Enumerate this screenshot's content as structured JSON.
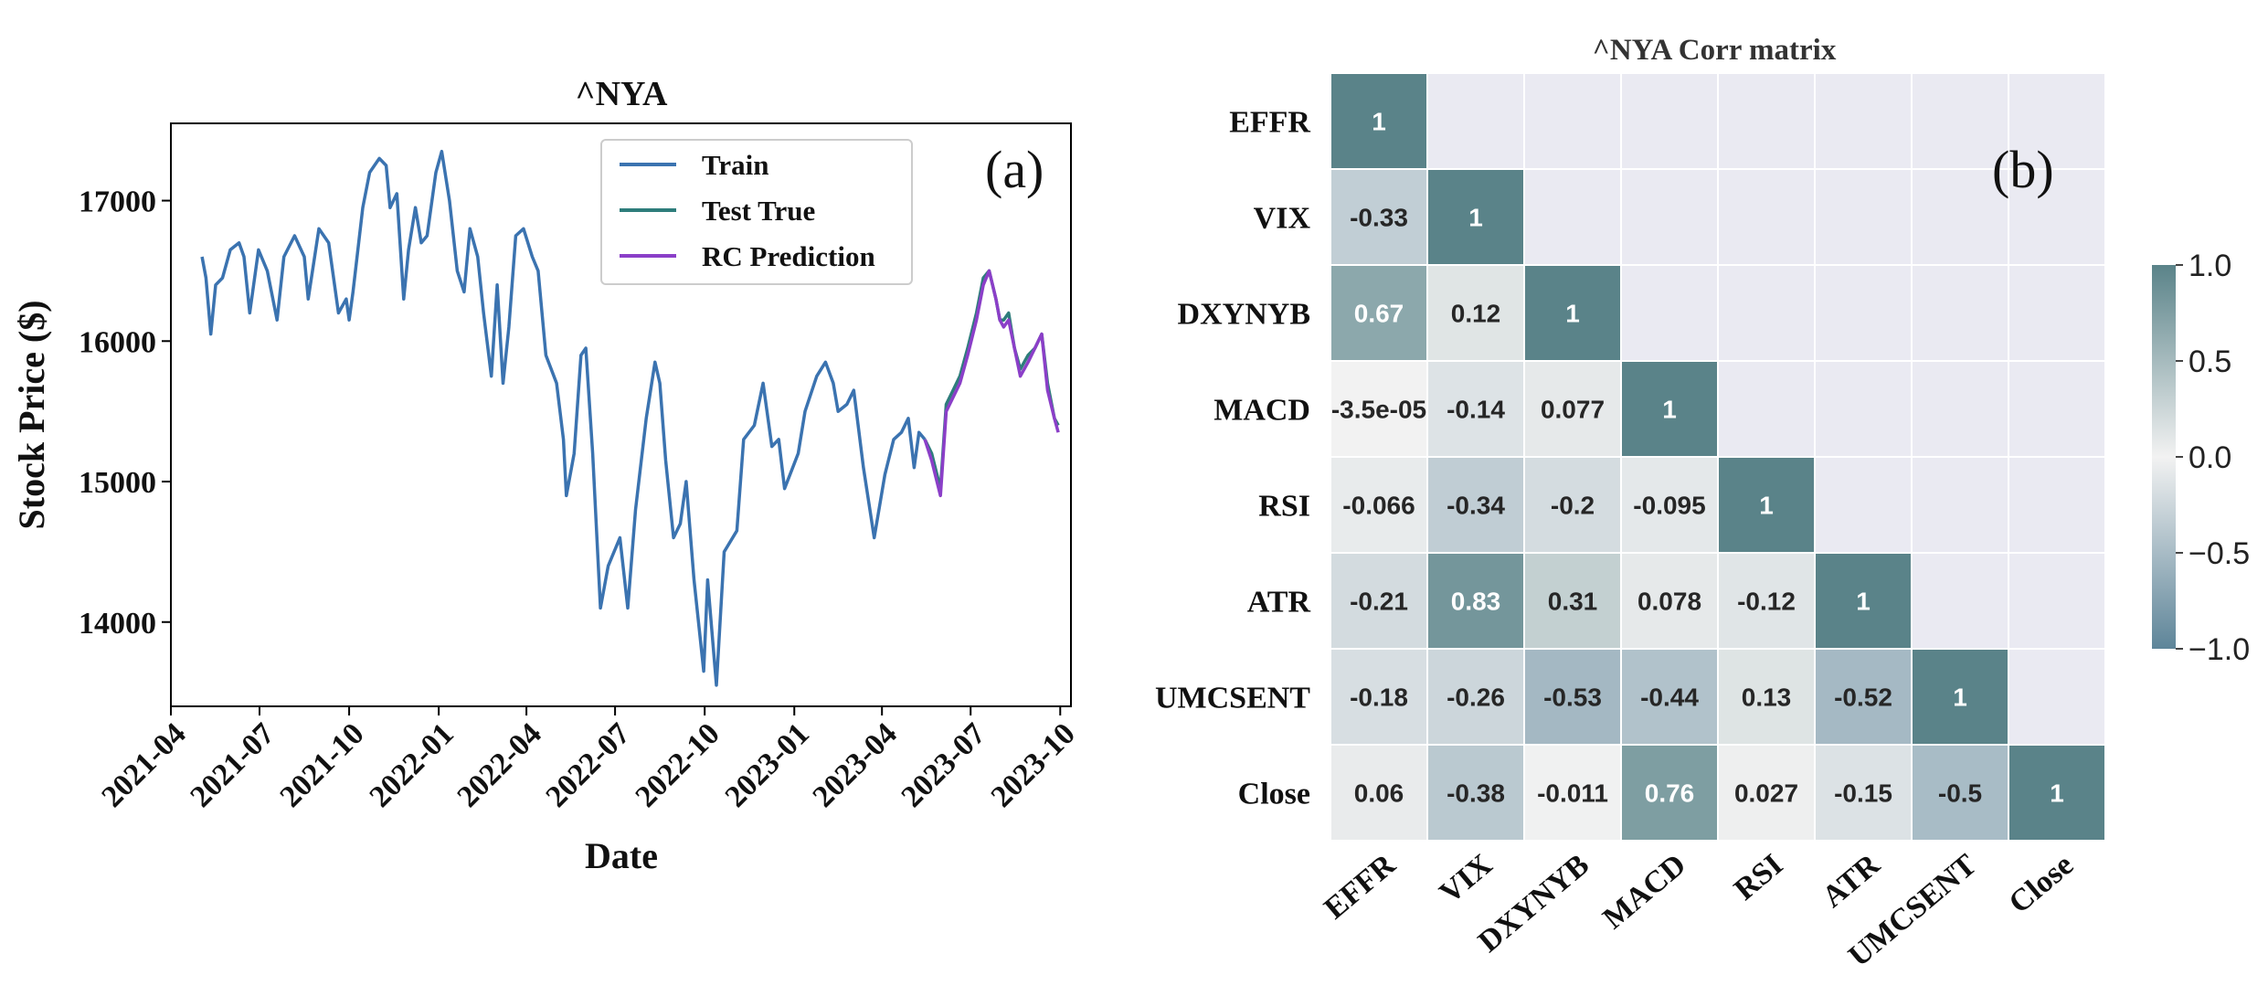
{
  "chart_data": [
    {
      "type": "line",
      "panel_label": "(a)",
      "title": "^NYA",
      "xlabel": "Date",
      "ylabel": "Stock Price ($)",
      "x_ticks": [
        "2021-04",
        "2021-07",
        "2021-10",
        "2022-01",
        "2022-04",
        "2022-07",
        "2022-10",
        "2023-01",
        "2023-04",
        "2023-07",
        "2023-10"
      ],
      "y_ticks": [
        14000,
        15000,
        16000,
        17000
      ],
      "xlim": [
        "2021-04-01",
        "2023-10-12"
      ],
      "ylim": [
        13400,
        17550
      ],
      "legend_position": "upper center",
      "series": [
        {
          "name": "Train",
          "color": "#3b73b0",
          "x": [
            "2021-05-03",
            "2021-05-07",
            "2021-05-12",
            "2021-05-17",
            "2021-05-24",
            "2021-06-01",
            "2021-06-10",
            "2021-06-15",
            "2021-06-21",
            "2021-06-30",
            "2021-07-09",
            "2021-07-19",
            "2021-07-26",
            "2021-08-06",
            "2021-08-16",
            "2021-08-20",
            "2021-08-31",
            "2021-09-10",
            "2021-09-20",
            "2021-09-28",
            "2021-10-01",
            "2021-10-05",
            "2021-10-15",
            "2021-10-22",
            "2021-11-01",
            "2021-11-08",
            "2021-11-12",
            "2021-11-19",
            "2021-11-26",
            "2021-12-01",
            "2021-12-08",
            "2021-12-14",
            "2021-12-20",
            "2021-12-29",
            "2022-01-04",
            "2022-01-12",
            "2022-01-20",
            "2022-01-27",
            "2022-02-02",
            "2022-02-10",
            "2022-02-16",
            "2022-02-24",
            "2022-03-02",
            "2022-03-08",
            "2022-03-14",
            "2022-03-21",
            "2022-03-29",
            "2022-04-07",
            "2022-04-13",
            "2022-04-21",
            "2022-05-02",
            "2022-05-09",
            "2022-05-12",
            "2022-05-20",
            "2022-05-27",
            "2022-06-01",
            "2022-06-08",
            "2022-06-16",
            "2022-06-24",
            "2022-07-06",
            "2022-07-14",
            "2022-07-22",
            "2022-08-02",
            "2022-08-11",
            "2022-08-16",
            "2022-08-22",
            "2022-08-30",
            "2022-09-06",
            "2022-09-12",
            "2022-09-20",
            "2022-09-30",
            "2022-10-04",
            "2022-10-13",
            "2022-10-21",
            "2022-11-03",
            "2022-11-10",
            "2022-11-21",
            "2022-11-30",
            "2022-12-09",
            "2022-12-16",
            "2022-12-22",
            "2023-01-05",
            "2023-01-12",
            "2023-01-24",
            "2023-02-02",
            "2023-02-10",
            "2023-02-15",
            "2023-02-24",
            "2023-03-03",
            "2023-03-13",
            "2023-03-24",
            "2023-04-04",
            "2023-04-13",
            "2023-04-21",
            "2023-04-28",
            "2023-05-04",
            "2023-05-09",
            "2023-05-15"
          ],
          "y": [
            16600,
            16450,
            16050,
            16400,
            16450,
            16650,
            16700,
            16600,
            16200,
            16650,
            16500,
            16150,
            16600,
            16750,
            16600,
            16300,
            16800,
            16700,
            16200,
            16300,
            16150,
            16350,
            16950,
            17200,
            17300,
            17250,
            16950,
            17050,
            16300,
            16650,
            16950,
            16700,
            16750,
            17200,
            17350,
            17000,
            16500,
            16350,
            16800,
            16600,
            16200,
            15750,
            16400,
            15700,
            16100,
            16750,
            16800,
            16600,
            16500,
            15900,
            15700,
            15300,
            14900,
            15200,
            15900,
            15950,
            15200,
            14100,
            14400,
            14600,
            14100,
            14800,
            15450,
            15850,
            15700,
            15150,
            14600,
            14700,
            15000,
            14300,
            13650,
            14300,
            13550,
            14500,
            14650,
            15300,
            15400,
            15700,
            15250,
            15300,
            14950,
            15200,
            15500,
            15750,
            15850,
            15700,
            15500,
            15550,
            15650,
            15100,
            14600,
            15050,
            15300,
            15350,
            15450,
            15100,
            15350,
            15300
          ]
        },
        {
          "name": "Test True",
          "color": "#2e7d7b",
          "x": [
            "2023-05-15",
            "2023-05-22",
            "2023-05-31",
            "2023-06-06",
            "2023-06-13",
            "2023-06-20",
            "2023-06-28",
            "2023-07-07",
            "2023-07-14",
            "2023-07-20",
            "2023-07-27",
            "2023-07-31",
            "2023-08-04",
            "2023-08-09",
            "2023-08-15",
            "2023-08-21",
            "2023-08-29",
            "2023-09-05",
            "2023-09-12",
            "2023-09-18",
            "2023-09-25",
            "2023-09-29"
          ],
          "y": [
            15300,
            15200,
            14950,
            15550,
            15650,
            15750,
            15950,
            16200,
            16450,
            16500,
            16300,
            16150,
            16150,
            16200,
            15950,
            15800,
            15900,
            15950,
            16050,
            15700,
            15450,
            15400
          ]
        },
        {
          "name": "RC Prediction",
          "color": "#8b3fc8",
          "x": [
            "2023-05-15",
            "2023-05-22",
            "2023-05-31",
            "2023-06-06",
            "2023-06-13",
            "2023-06-20",
            "2023-06-28",
            "2023-07-07",
            "2023-07-14",
            "2023-07-20",
            "2023-07-27",
            "2023-07-31",
            "2023-08-04",
            "2023-08-09",
            "2023-08-15",
            "2023-08-21",
            "2023-08-29",
            "2023-09-05",
            "2023-09-12",
            "2023-09-18",
            "2023-09-25",
            "2023-09-29"
          ],
          "y": [
            15300,
            15150,
            14900,
            15500,
            15600,
            15700,
            15900,
            16150,
            16400,
            16500,
            16300,
            16150,
            16100,
            16150,
            15950,
            15750,
            15850,
            15950,
            16050,
            15650,
            15450,
            15350
          ]
        }
      ]
    },
    {
      "type": "heatmap",
      "panel_label": "(b)",
      "title": "^NYA Corr matrix",
      "labels": [
        "EFFR",
        "VIX",
        "DXYNYB",
        "MACD",
        "RSI",
        "ATR",
        "UMCSENT",
        "Close"
      ],
      "matrix": [
        [
          "1"
        ],
        [
          "-0.33",
          "1"
        ],
        [
          "0.67",
          "0.12",
          "1"
        ],
        [
          "-3.5e-05",
          "-0.14",
          "0.077",
          "1"
        ],
        [
          "-0.066",
          "-0.34",
          "-0.2",
          "-0.095",
          "1"
        ],
        [
          "-0.21",
          "0.83",
          "0.31",
          "0.078",
          "-0.12",
          "1"
        ],
        [
          "-0.18",
          "-0.26",
          "-0.53",
          "-0.44",
          "0.13",
          "-0.52",
          "1"
        ],
        [
          "0.06",
          "-0.38",
          "-0.011",
          "0.76",
          "0.027",
          "-0.15",
          "-0.5",
          "1"
        ]
      ],
      "vmin": -1.0,
      "vmax": 1.0,
      "colorbar_ticks": [
        "1.0",
        "0.5",
        "0.0",
        "−0.5",
        "−1.0"
      ],
      "colormap": {
        "negative": "#5e8599",
        "center": "#f2f2f2",
        "positive": "#5a8389",
        "masked": "#eaeaf2"
      }
    }
  ]
}
